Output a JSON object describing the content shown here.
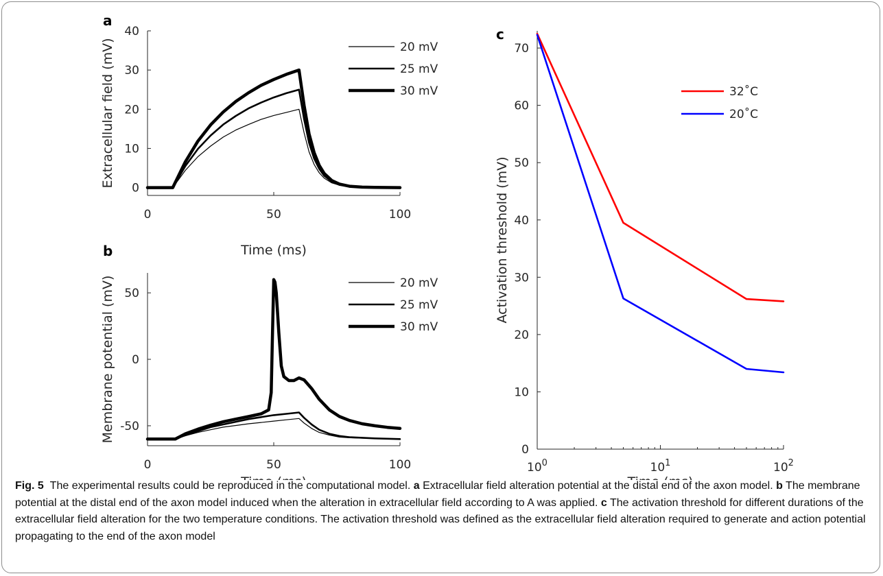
{
  "chart_data": [
    {
      "panel": "a",
      "type": "line",
      "xlabel": "Time (ms)",
      "ylabel": "Extracellular field (mV)",
      "xlim": [
        0,
        100
      ],
      "ylim": [
        -2,
        40
      ],
      "xticks": [
        0,
        50,
        100
      ],
      "yticks": [
        0,
        10,
        20,
        30,
        40
      ],
      "grid": false,
      "legend_position": "top-right",
      "series": [
        {
          "name": "20 mV",
          "stroke": 1.2,
          "x": [
            0,
            10,
            15,
            20,
            25,
            30,
            35,
            40,
            45,
            50,
            55,
            60,
            62,
            64,
            66,
            68,
            70,
            73,
            76,
            80,
            85,
            90,
            100
          ],
          "y": [
            0,
            0,
            4.4,
            7.9,
            10.6,
            12.9,
            14.7,
            16.1,
            17.4,
            18.4,
            19.2,
            20,
            14,
            9.1,
            5.9,
            3.8,
            2.4,
            1.2,
            0.6,
            0.25,
            0.1,
            0.04,
            0
          ]
        },
        {
          "name": "25 mV",
          "stroke": 2.6,
          "x": [
            0,
            10,
            15,
            20,
            25,
            30,
            35,
            40,
            45,
            50,
            55,
            60,
            62,
            64,
            66,
            68,
            70,
            73,
            76,
            80,
            85,
            90,
            100
          ],
          "y": [
            0,
            0,
            5.5,
            9.9,
            13.3,
            16.1,
            18.3,
            20.2,
            21.7,
            23,
            24.1,
            25,
            17.5,
            11.4,
            7.4,
            4.8,
            3,
            1.5,
            0.7,
            0.3,
            0.1,
            0.04,
            0
          ]
        },
        {
          "name": "30 mV",
          "stroke": 4.5,
          "x": [
            0,
            10,
            15,
            20,
            25,
            30,
            35,
            40,
            45,
            50,
            55,
            60,
            62,
            64,
            66,
            68,
            70,
            73,
            76,
            80,
            85,
            90,
            100
          ],
          "y": [
            0,
            0,
            6.6,
            11.9,
            16,
            19.3,
            22,
            24.2,
            26.1,
            27.6,
            28.9,
            30,
            21,
            13.7,
            8.9,
            5.7,
            3.6,
            1.8,
            0.9,
            0.35,
            0.12,
            0.05,
            0
          ]
        }
      ]
    },
    {
      "panel": "b",
      "type": "line",
      "xlabel": "Time (ms)",
      "ylabel": "Membrane potential (mV)",
      "xlim": [
        0,
        100
      ],
      "ylim": [
        -65,
        65
      ],
      "xticks": [
        0,
        50,
        100
      ],
      "yticks": [
        -50,
        0,
        50
      ],
      "grid": false,
      "legend_position": "top-right",
      "series": [
        {
          "name": "20 mV",
          "stroke": 1.2,
          "x": [
            0,
            11,
            15,
            20,
            25,
            30,
            35,
            40,
            45,
            50,
            55,
            60,
            62,
            65,
            68,
            72,
            76,
            80,
            90,
            100
          ],
          "y": [
            -60,
            -60,
            -57.5,
            -55,
            -53,
            -51,
            -49.8,
            -48.5,
            -47.5,
            -46.5,
            -45.5,
            -44.5,
            -48,
            -52,
            -55,
            -57,
            -58.5,
            -59,
            -59.6,
            -60
          ]
        },
        {
          "name": "25 mV",
          "stroke": 2.6,
          "x": [
            0,
            11,
            15,
            20,
            25,
            30,
            35,
            40,
            45,
            50,
            55,
            60,
            62,
            65,
            68,
            72,
            76,
            80,
            90,
            100
          ],
          "y": [
            -60,
            -60,
            -57,
            -54,
            -51,
            -49,
            -47,
            -45,
            -43.5,
            -42,
            -41,
            -40,
            -44,
            -49,
            -53,
            -56,
            -57.7,
            -58.6,
            -59.5,
            -60
          ]
        },
        {
          "name": "30 mV",
          "stroke": 4.5,
          "x": [
            0,
            11,
            15,
            20,
            25,
            30,
            35,
            40,
            45,
            48,
            49,
            49.5,
            50,
            50.5,
            51,
            52,
            53,
            54,
            56,
            58,
            60,
            62,
            65,
            68,
            72,
            76,
            80,
            85,
            90,
            95,
            100
          ],
          "y": [
            -60,
            -60,
            -56,
            -52.5,
            -49.5,
            -47,
            -45,
            -43,
            -41,
            -38,
            -25,
            20,
            60,
            58,
            50,
            20,
            -5,
            -13,
            -16,
            -16,
            -14,
            -15.5,
            -22,
            -30,
            -38,
            -43,
            -46,
            -48.5,
            -50,
            -51.2,
            -52
          ]
        }
      ]
    },
    {
      "panel": "c",
      "type": "line",
      "xlabel": "Time (ms)",
      "ylabel": "Activation threshold (mV)",
      "xscale": "log",
      "xlim": [
        1,
        100
      ],
      "ylim": [
        0,
        73
      ],
      "xticks": [
        "10^0",
        "10^1",
        "10^2"
      ],
      "yticks": [
        0,
        10,
        20,
        30,
        40,
        50,
        60,
        70
      ],
      "grid": false,
      "legend_position": "top-right",
      "series": [
        {
          "name": "32˚C",
          "color": "#ff0000",
          "x": [
            1,
            5,
            50,
            100
          ],
          "y": [
            72.5,
            39.5,
            26.2,
            25.8
          ]
        },
        {
          "name": "20˚C",
          "color": "#0000ff",
          "x": [
            1,
            5,
            50,
            100
          ],
          "y": [
            72.3,
            26.3,
            14.0,
            13.4
          ]
        }
      ]
    }
  ],
  "caption": {
    "fig_label": "Fig. 5",
    "intro": "The experimental results could be reproduced in the computational model.",
    "a_label": "a",
    "a_text": "Extracellular field alteration potential at the distal end of the axon model.",
    "b_label": "b",
    "b_text": "The membrane potential at the distal end of the axon model induced when the alteration in extracellular field according to A was applied.",
    "c_label": "c",
    "c_text": "The activation threshold for different durations of the extracellular field alteration for the two temperature conditions. The activation threshold was defined as the extracellular field alteration required to generate and action potential propagating to the end of the axon model"
  }
}
